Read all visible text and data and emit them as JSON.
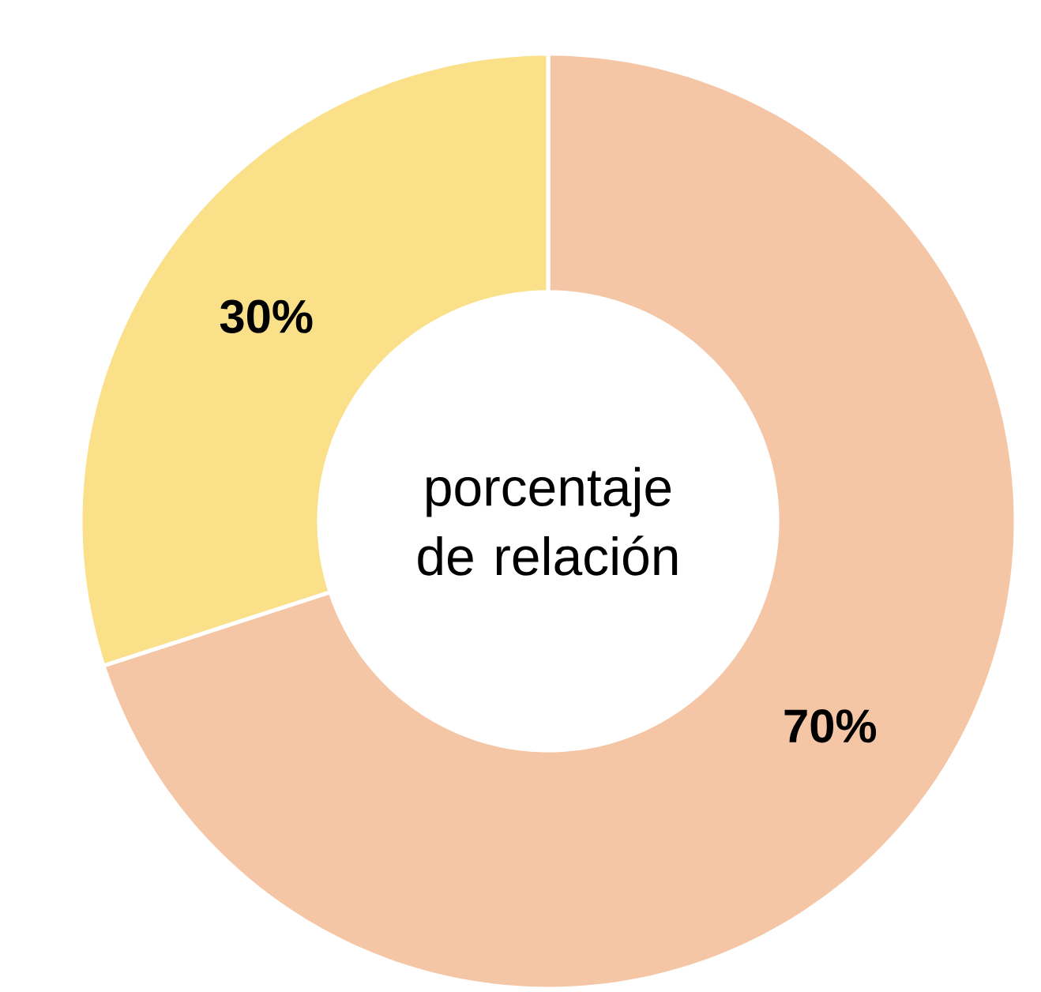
{
  "chart_data": {
    "type": "donut",
    "title": "porcentaje de relación",
    "categories": [
      null,
      null
    ],
    "values": [
      70,
      30
    ],
    "colors": [
      "#f5c6a5",
      "#fbe08a"
    ],
    "value_labels": [
      "70%",
      "30%"
    ]
  }
}
